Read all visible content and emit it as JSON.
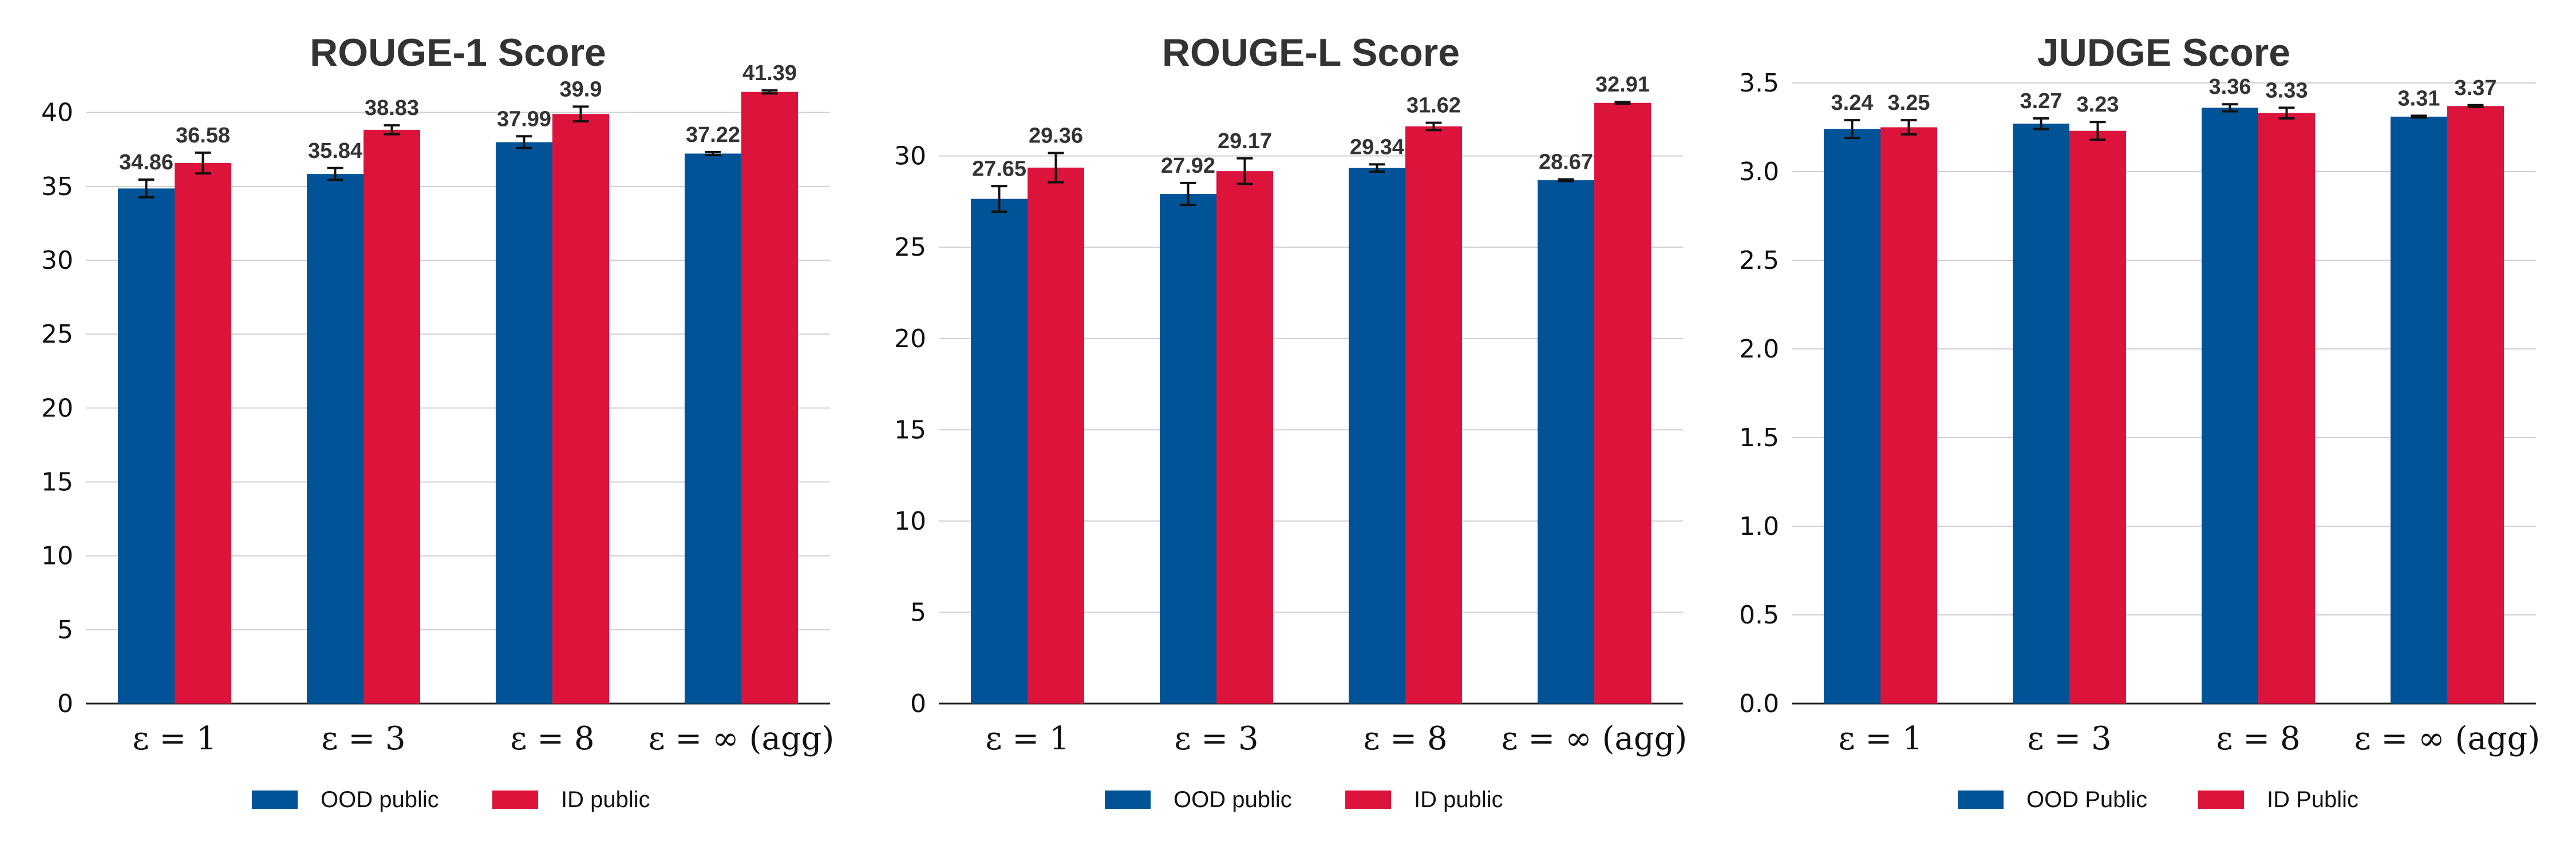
{
  "chart_data": [
    {
      "type": "bar",
      "title": "ROUGE-1 Score",
      "categories": [
        "ε = 1",
        "ε = 3",
        "ε = 8",
        "ε = ∞ (agg)"
      ],
      "ylim": [
        0,
        42
      ],
      "yticks": [
        0,
        5,
        10,
        15,
        20,
        25,
        30,
        35,
        40
      ],
      "grid": true,
      "legend_position": "bottom",
      "series": [
        {
          "name": "OOD public",
          "color": "#005396",
          "values": [
            34.86,
            35.84,
            37.99,
            37.22
          ],
          "errors": [
            0.6,
            0.4,
            0.4,
            0.1
          ],
          "labels": [
            "34.86",
            "35.84",
            "37.99",
            "37.22"
          ]
        },
        {
          "name": "ID public",
          "color": "#dc143c",
          "values": [
            36.58,
            38.83,
            39.9,
            41.39
          ],
          "errors": [
            0.7,
            0.3,
            0.5,
            0.1
          ],
          "labels": [
            "36.58",
            "38.83",
            "39.9",
            "41.39"
          ]
        }
      ]
    },
    {
      "type": "bar",
      "title": "ROUGE-L Score",
      "categories": [
        "ε = 1",
        "ε = 3",
        "ε = 8",
        "ε = ∞ (agg)"
      ],
      "ylim": [
        0,
        34
      ],
      "yticks": [
        0,
        5,
        10,
        15,
        20,
        25,
        30
      ],
      "grid": true,
      "legend_position": "bottom",
      "series": [
        {
          "name": "OOD public",
          "color": "#005396",
          "values": [
            27.65,
            27.92,
            29.34,
            28.67
          ],
          "errors": [
            0.7,
            0.6,
            0.2,
            0.05
          ],
          "labels": [
            "27.65",
            "27.92",
            "29.34",
            "28.67"
          ]
        },
        {
          "name": "ID public",
          "color": "#dc143c",
          "values": [
            29.36,
            29.17,
            31.62,
            32.91
          ],
          "errors": [
            0.8,
            0.7,
            0.2,
            0.05
          ],
          "labels": [
            "29.36",
            "29.17",
            "31.62",
            "32.91"
          ]
        }
      ]
    },
    {
      "type": "bar",
      "title": "JUDGE Score",
      "categories": [
        "ε = 1",
        "ε = 3",
        "ε = 8",
        "ε = ∞ (agg)"
      ],
      "ylim": [
        0,
        3.5
      ],
      "yticks": [
        "0.0",
        "0.5",
        "1.0",
        "1.5",
        "2.0",
        "2.5",
        "3.0",
        "3.5"
      ],
      "grid": true,
      "legend_position": "bottom",
      "series": [
        {
          "name": "OOD Public",
          "color": "#005396",
          "values": [
            3.24,
            3.27,
            3.36,
            3.31
          ],
          "errors": [
            0.05,
            0.03,
            0.02,
            0.005
          ],
          "labels": [
            "3.24",
            "3.27",
            "3.36",
            "3.31"
          ]
        },
        {
          "name": "ID Public",
          "color": "#dc143c",
          "values": [
            3.25,
            3.23,
            3.33,
            3.37
          ],
          "errors": [
            0.04,
            0.05,
            0.03,
            0.005
          ],
          "labels": [
            "3.25",
            "3.23",
            "3.33",
            "3.37"
          ]
        }
      ]
    }
  ]
}
